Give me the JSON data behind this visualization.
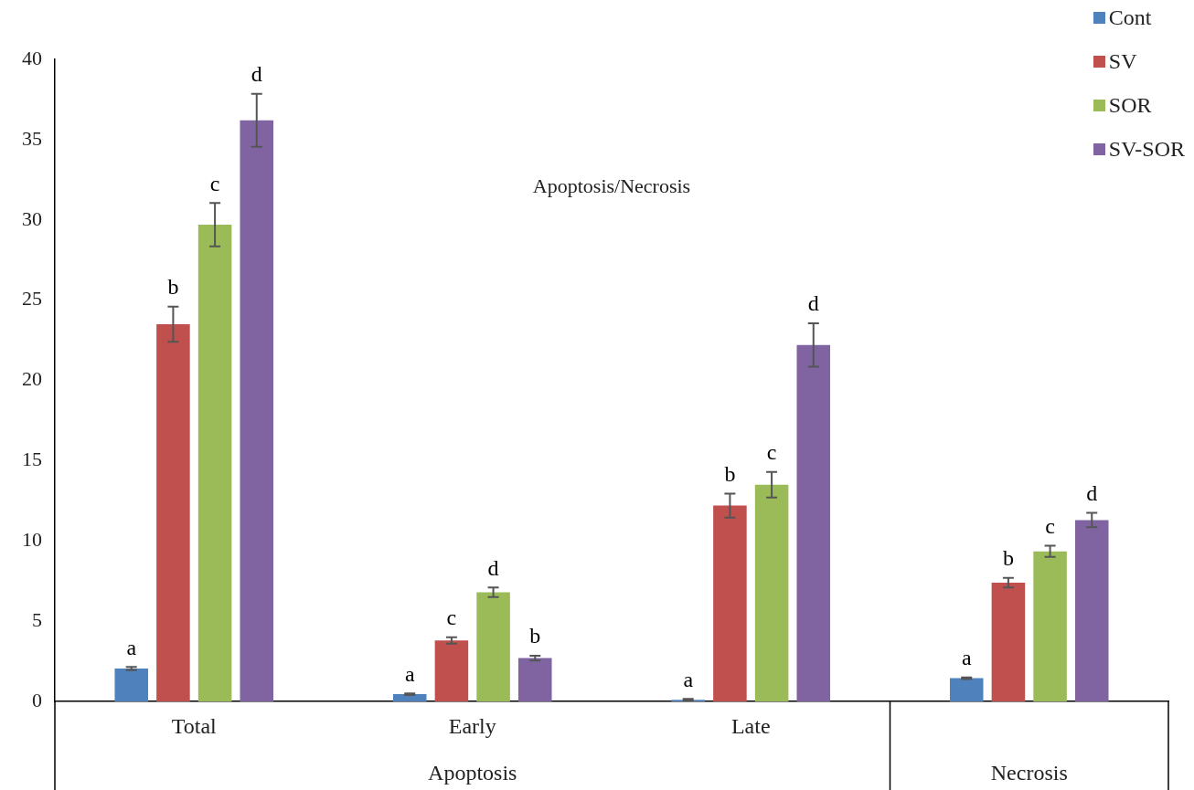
{
  "chart_data": {
    "type": "bar",
    "title": "Apoptosis/Necrosis",
    "categories": [
      "Total",
      "Early",
      "Late",
      null
    ],
    "series": [
      {
        "name": "Cont",
        "color": "#4f81bd",
        "values": [
          2.05,
          0.45,
          0.1,
          1.45
        ],
        "errors": [
          0.1,
          0.05,
          0.05,
          0.05
        ],
        "value_labels": [
          "a",
          "a",
          "a",
          "a"
        ]
      },
      {
        "name": "SV",
        "color": "#c0504d",
        "values": [
          23.5,
          3.8,
          12.2,
          7.4
        ],
        "errors": [
          1.1,
          0.2,
          0.75,
          0.3
        ],
        "value_labels": [
          "b",
          "c",
          "b",
          "b"
        ]
      },
      {
        "name": "SOR",
        "color": "#9bbb59",
        "values": [
          29.7,
          6.8,
          13.5,
          9.35
        ],
        "errors": [
          1.35,
          0.3,
          0.8,
          0.35
        ],
        "value_labels": [
          "c",
          "d",
          "c",
          "c"
        ]
      },
      {
        "name": "SV-SOR",
        "color": "#8064a2",
        "values": [
          36.2,
          2.7,
          22.2,
          11.3
        ],
        "errors": [
          1.65,
          0.15,
          1.35,
          0.45
        ],
        "value_labels": [
          "d",
          "b",
          "d",
          "d"
        ]
      }
    ],
    "annotations": [
      "Apoptosis",
      "Necrosis"
    ],
    "ylim": [
      0,
      40
    ],
    "yticks": [
      0,
      5,
      10,
      15,
      20,
      25,
      30,
      35,
      40
    ],
    "grid": false,
    "legend": "top right"
  }
}
